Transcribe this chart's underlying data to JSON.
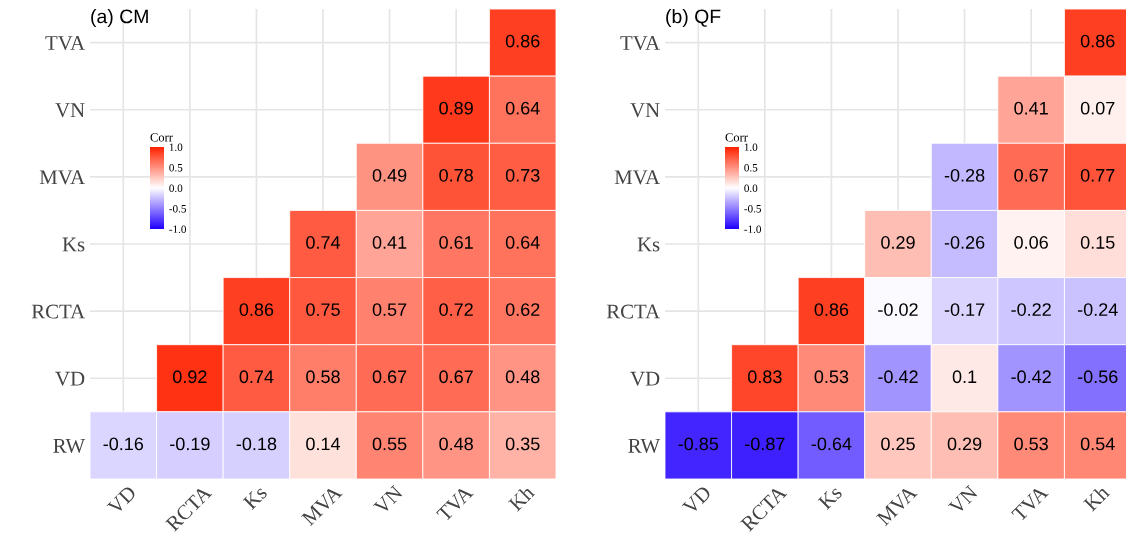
{
  "chart_data": [
    {
      "type": "heatmap",
      "title": "(a) CM",
      "legend_title": "Corr",
      "categories": [
        "VD",
        "RCTA",
        "Ks",
        "MVA",
        "VN",
        "TVA",
        "Kh"
      ],
      "y_categories": [
        "TVA",
        "VN",
        "MVA",
        "Ks",
        "RCTA",
        "VD",
        "RW"
      ],
      "cells": [
        [
          null,
          null,
          null,
          null,
          null,
          null,
          0.86
        ],
        [
          null,
          null,
          null,
          null,
          null,
          0.89,
          0.64
        ],
        [
          null,
          null,
          null,
          null,
          0.49,
          0.78,
          0.73
        ],
        [
          null,
          null,
          null,
          0.74,
          0.41,
          0.61,
          0.64
        ],
        [
          null,
          null,
          0.86,
          0.75,
          0.57,
          0.72,
          0.62
        ],
        [
          null,
          0.92,
          0.74,
          0.58,
          0.67,
          0.67,
          0.48
        ],
        [
          -0.16,
          -0.19,
          -0.18,
          0.14,
          0.55,
          0.48,
          0.35
        ]
      ],
      "clim": [
        -1.0,
        1.0
      ],
      "cticks": [
        {
          "value": 1,
          "label": "1.0"
        },
        {
          "value": 0.5,
          "label": "0.5"
        },
        {
          "value": 0,
          "label": "0.0"
        },
        {
          "value": -0.5,
          "label": "-0.5"
        },
        {
          "value": -1,
          "label": "-1.0"
        }
      ],
      "data_labels": true,
      "grid": true
    },
    {
      "type": "heatmap",
      "title": "(b) QF",
      "legend_title": "Corr",
      "categories": [
        "VD",
        "RCTA",
        "Ks",
        "MVA",
        "VN",
        "TVA",
        "Kh"
      ],
      "y_categories": [
        "TVA",
        "VN",
        "MVA",
        "Ks",
        "RCTA",
        "VD",
        "RW"
      ],
      "cells": [
        [
          null,
          null,
          null,
          null,
          null,
          null,
          0.86
        ],
        [
          null,
          null,
          null,
          null,
          null,
          0.41,
          0.07
        ],
        [
          null,
          null,
          null,
          null,
          -0.28,
          0.67,
          0.77
        ],
        [
          null,
          null,
          null,
          0.29,
          -0.26,
          0.06,
          0.15
        ],
        [
          null,
          null,
          0.86,
          -0.02,
          -0.17,
          -0.22,
          -0.24
        ],
        [
          null,
          0.83,
          0.53,
          -0.42,
          0.1,
          -0.42,
          -0.56
        ],
        [
          -0.85,
          -0.87,
          -0.64,
          0.25,
          0.29,
          0.53,
          0.54
        ]
      ],
      "clim": [
        -1.0,
        1.0
      ],
      "cticks": [
        {
          "value": 1,
          "label": "1.0"
        },
        {
          "value": 0.5,
          "label": "0.5"
        },
        {
          "value": 0,
          "label": "0.0"
        },
        {
          "value": -0.5,
          "label": "-0.5"
        },
        {
          "value": -1,
          "label": "-1.0"
        }
      ],
      "data_labels": true,
      "grid": true
    }
  ]
}
